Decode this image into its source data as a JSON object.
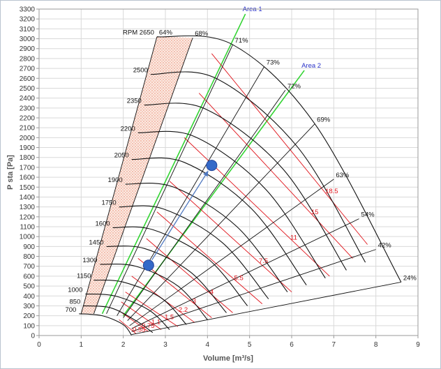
{
  "chart_data": {
    "type": "line",
    "title": "",
    "xlabel": "Volume [m³/s]",
    "ylabel": "P sta [Pa]",
    "xlim": [
      0,
      9
    ],
    "ylim": [
      0,
      3300
    ],
    "x_ticks": [
      "0",
      "1",
      "2",
      "3",
      "4",
      "5",
      "6",
      "7",
      "8",
      "9"
    ],
    "y_ticks": [
      "0",
      "100",
      "200",
      "300",
      "400",
      "500",
      "600",
      "700",
      "800",
      "900",
      "1000",
      "1100",
      "1200",
      "1300",
      "1400",
      "1500",
      "1600",
      "1700",
      "1800",
      "1900",
      "2000",
      "2100",
      "2200",
      "2300",
      "2400",
      "2500",
      "2600",
      "2700",
      "2800",
      "2900",
      "3000",
      "3100",
      "3200",
      "3300"
    ],
    "grid": true,
    "rpm_curves": [
      {
        "label": "700",
        "points": [
          [
            0.95,
            220
          ],
          [
            1.5,
            200
          ],
          [
            2.0,
            110
          ],
          [
            2.2,
            0
          ]
        ]
      },
      {
        "label": "850",
        "points": [
          [
            1.05,
            300
          ],
          [
            1.7,
            280
          ],
          [
            2.3,
            150
          ],
          [
            2.7,
            30
          ]
        ]
      },
      {
        "label": "1000",
        "points": [
          [
            1.1,
            420
          ],
          [
            1.8,
            400
          ],
          [
            2.6,
            260
          ],
          [
            3.1,
            60
          ]
        ]
      },
      {
        "label": "1150",
        "points": [
          [
            1.3,
            560
          ],
          [
            2.0,
            540
          ],
          [
            2.9,
            380
          ],
          [
            3.5,
            110
          ]
        ]
      },
      {
        "label": "1300",
        "points": [
          [
            1.45,
            720
          ],
          [
            2.3,
            700
          ],
          [
            3.3,
            500
          ],
          [
            4.0,
            160
          ]
        ]
      },
      {
        "label": "1450",
        "points": [
          [
            1.6,
            900
          ],
          [
            2.5,
            880
          ],
          [
            3.6,
            640
          ],
          [
            4.45,
            230
          ]
        ]
      },
      {
        "label": "1600",
        "points": [
          [
            1.75,
            1090
          ],
          [
            2.7,
            1070
          ],
          [
            4.0,
            780
          ],
          [
            4.95,
            300
          ]
        ]
      },
      {
        "label": "1750",
        "points": [
          [
            1.9,
            1300
          ],
          [
            2.95,
            1280
          ],
          [
            4.35,
            940
          ],
          [
            5.45,
            370
          ]
        ]
      },
      {
        "label": "1900",
        "points": [
          [
            2.05,
            1530
          ],
          [
            3.2,
            1500
          ],
          [
            4.7,
            1100
          ],
          [
            5.9,
            440
          ]
        ]
      },
      {
        "label": "2050",
        "points": [
          [
            2.2,
            1780
          ],
          [
            3.45,
            1750
          ],
          [
            5.05,
            1280
          ],
          [
            6.35,
            510
          ]
        ]
      },
      {
        "label": "2200",
        "points": [
          [
            2.35,
            2050
          ],
          [
            3.7,
            2010
          ],
          [
            5.4,
            1470
          ],
          [
            6.8,
            580
          ]
        ]
      },
      {
        "label": "2350",
        "points": [
          [
            2.5,
            2330
          ],
          [
            3.95,
            2290
          ],
          [
            5.8,
            1680
          ],
          [
            7.3,
            660
          ]
        ]
      },
      {
        "label": "2500",
        "points": [
          [
            2.65,
            2640
          ],
          [
            4.2,
            2600
          ],
          [
            6.15,
            1900
          ],
          [
            7.75,
            740
          ]
        ]
      },
      {
        "label": "RPM 2650",
        "points": [
          [
            2.8,
            3020
          ],
          [
            4.6,
            2940
          ],
          [
            6.55,
            2140
          ],
          [
            8.6,
            540
          ]
        ]
      }
    ],
    "efficiency_lines": [
      {
        "label": "64%",
        "points": [
          [
            1.0,
            220
          ],
          [
            2.8,
            3020
          ]
        ]
      },
      {
        "label": "68%",
        "points": [
          [
            1.3,
            220
          ],
          [
            3.65,
            3010
          ]
        ]
      },
      {
        "label": "71%",
        "points": [
          [
            1.6,
            220
          ],
          [
            4.6,
            2940
          ]
        ]
      },
      {
        "label": "73%",
        "points": [
          [
            1.85,
            200
          ],
          [
            5.35,
            2720
          ]
        ]
      },
      {
        "label": "72%",
        "points": [
          [
            2.0,
            180
          ],
          [
            5.85,
            2480
          ]
        ]
      },
      {
        "label": "69%",
        "points": [
          [
            2.1,
            150
          ],
          [
            6.55,
            2140
          ]
        ]
      },
      {
        "label": "63%",
        "points": [
          [
            2.15,
            100
          ],
          [
            7.0,
            1580
          ]
        ]
      },
      {
        "label": "54%",
        "points": [
          [
            2.2,
            70
          ],
          [
            7.6,
            1180
          ]
        ]
      },
      {
        "label": "42%",
        "points": [
          [
            2.2,
            40
          ],
          [
            8.0,
            870
          ]
        ]
      },
      {
        "label": "24%",
        "points": [
          [
            2.2,
            10
          ],
          [
            8.6,
            540
          ]
        ]
      }
    ],
    "power_lines": [
      {
        "label": "0.55",
        "points": [
          [
            1.9,
            160
          ],
          [
            2.3,
            20
          ]
        ]
      },
      {
        "label": "0.75",
        "points": [
          [
            1.9,
            250
          ],
          [
            2.6,
            40
          ]
        ]
      },
      {
        "label": "1.1",
        "points": [
          [
            1.95,
            340
          ],
          [
            2.9,
            60
          ]
        ]
      },
      {
        "label": "1.5",
        "points": [
          [
            2.05,
            440
          ],
          [
            3.3,
            90
          ]
        ]
      },
      {
        "label": "2.2",
        "points": [
          [
            2.2,
            600
          ],
          [
            3.7,
            130
          ]
        ]
      },
      {
        "label": "3",
        "points": [
          [
            2.35,
            780
          ],
          [
            4.1,
            180
          ]
        ]
      },
      {
        "label": "4",
        "points": [
          [
            2.55,
            980
          ],
          [
            4.6,
            230
          ]
        ]
      },
      {
        "label": "5.5",
        "points": [
          [
            2.8,
            1250
          ],
          [
            5.3,
            320
          ]
        ]
      },
      {
        "label": "7.5",
        "points": [
          [
            3.1,
            1560
          ],
          [
            6.0,
            440
          ]
        ]
      },
      {
        "label": "11",
        "points": [
          [
            3.45,
            2000
          ],
          [
            6.9,
            600
          ]
        ]
      },
      {
        "label": "15",
        "points": [
          [
            3.8,
            2450
          ],
          [
            7.45,
            780
          ]
        ]
      },
      {
        "label": "18.5",
        "points": [
          [
            4.1,
            2850
          ],
          [
            7.8,
            920
          ]
        ]
      }
    ],
    "areas": [
      {
        "label": "Area 1",
        "line_points": [
          [
            1.5,
            220
          ],
          [
            4.9,
            3250
          ]
        ]
      },
      {
        "label": "Area 2",
        "line_points": [
          [
            2.0,
            200
          ],
          [
            6.3,
            2680
          ]
        ]
      }
    ],
    "operating_points": [
      {
        "x": 2.6,
        "y": 710
      },
      {
        "x": 4.1,
        "y": 1720
      }
    ],
    "colors": {
      "rpm": "#111111",
      "efficiency": "#111111",
      "power": "#e0141b",
      "area_line": "#33d433",
      "area_label": "#2a32c8",
      "hatch": "#e97b5b",
      "point_fill": "#3469c8",
      "arrow": "#4f78bf",
      "grid": "#d9d9d9"
    }
  }
}
